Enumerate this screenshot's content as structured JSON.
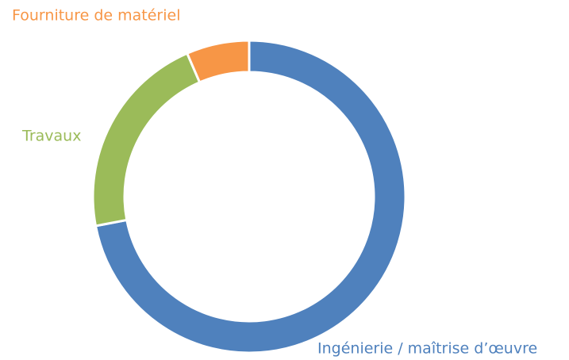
{
  "chart_data": {
    "type": "donut",
    "categories": [
      "Ingénierie / maîtrise d’œuvre",
      "Travaux",
      "Fourniture de matériel"
    ],
    "values": [
      72,
      21.5,
      6.5
    ],
    "colors": [
      "#4f81bd",
      "#9bbb59",
      "#f79646"
    ]
  }
}
